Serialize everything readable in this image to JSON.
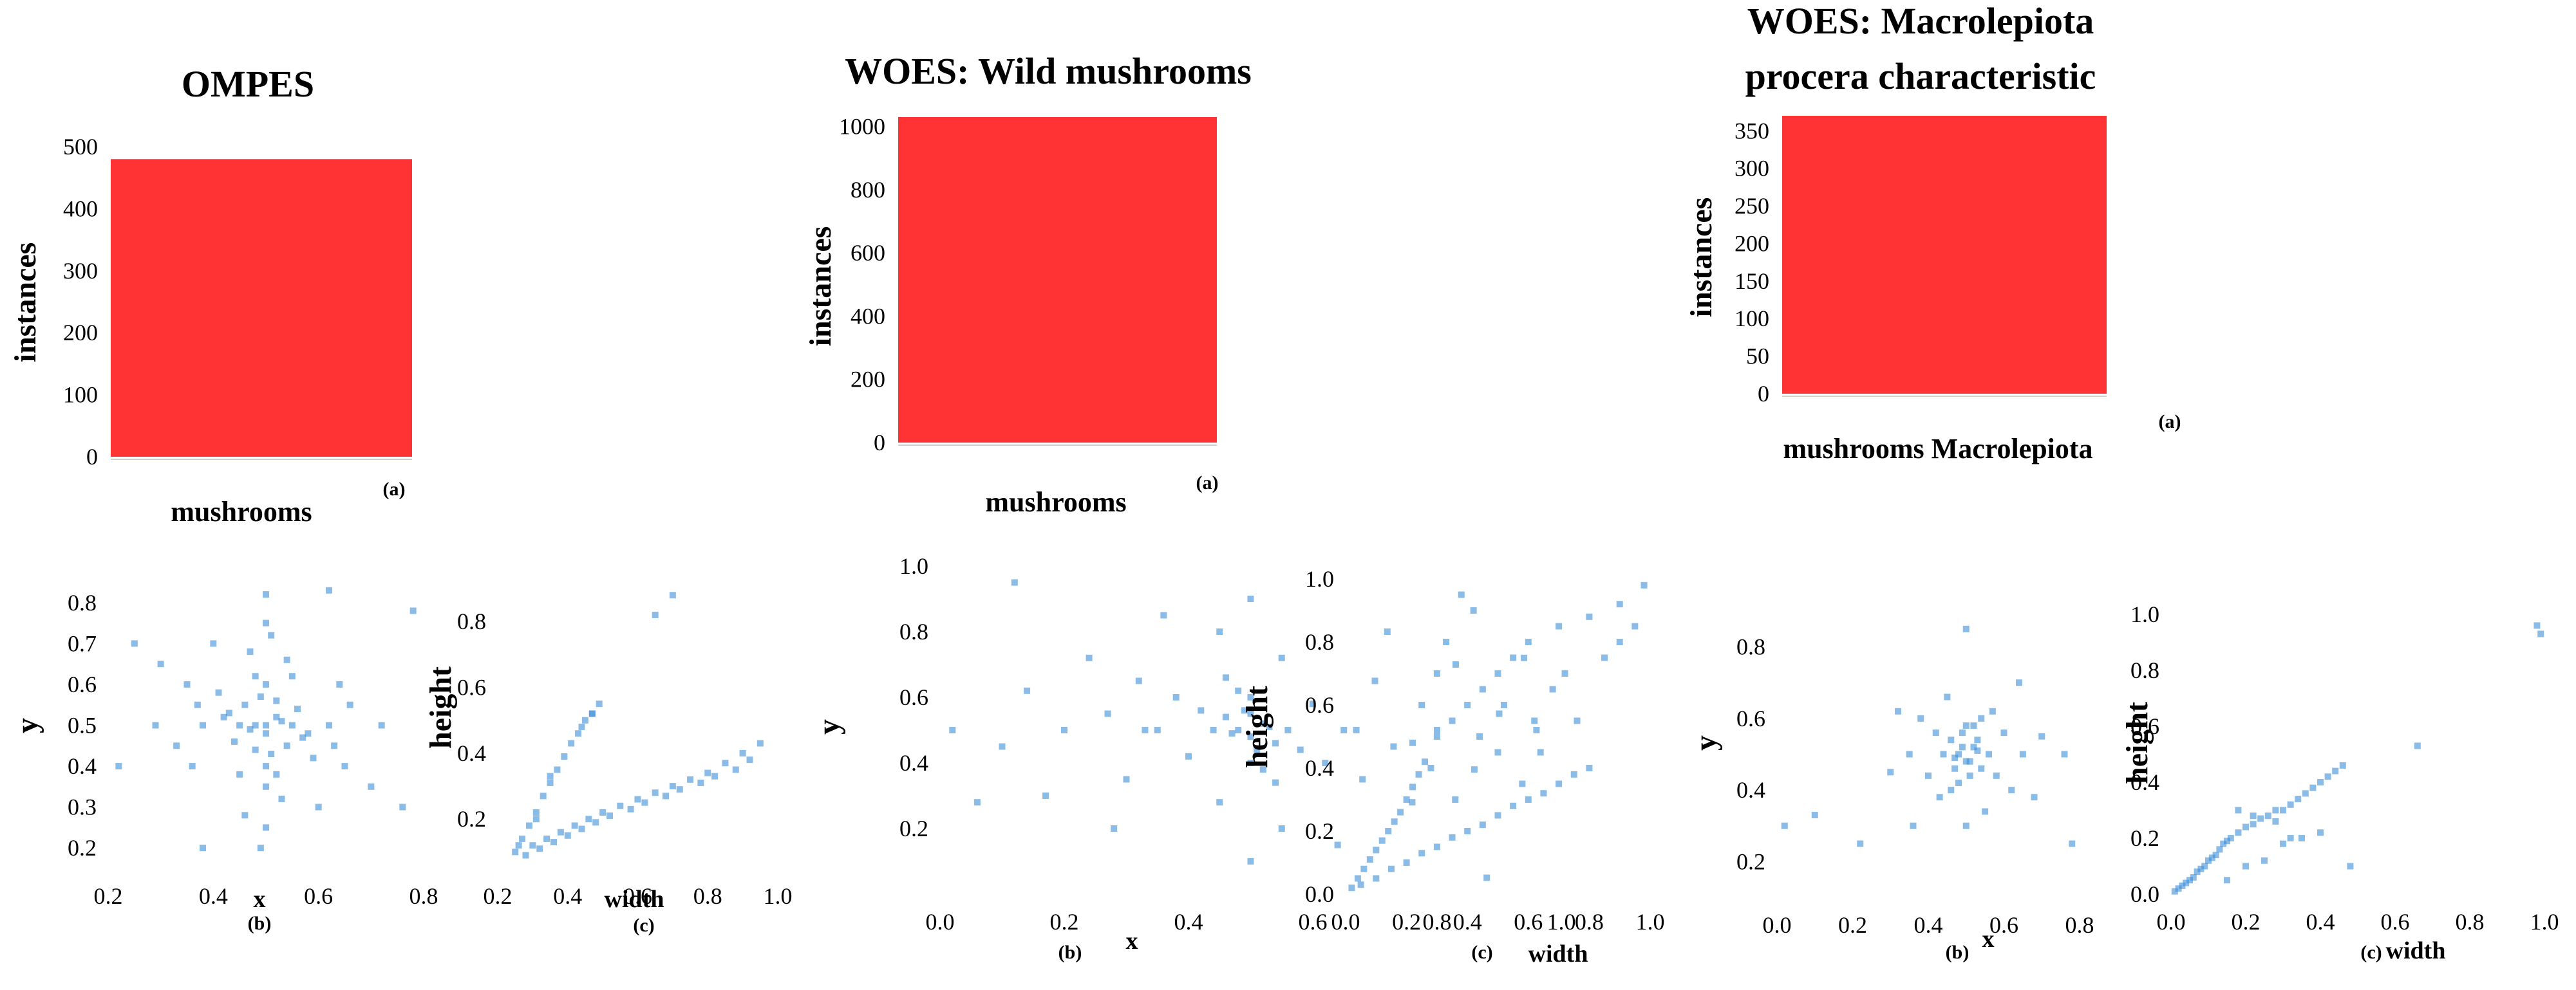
{
  "chart_data": [
    {
      "type": "bar",
      "title": "OMPES",
      "categories": [
        "mushrooms"
      ],
      "values": [
        480
      ],
      "ylabel": "instances",
      "xlabel": "",
      "ylim": [
        0,
        500
      ],
      "yticks": [
        "0",
        "100",
        "200",
        "300",
        "400",
        "500"
      ],
      "bar_color": "#ff3333",
      "panel_label": "(a)"
    },
    {
      "type": "scatter",
      "panel_label": "(b)",
      "xlabel": "x",
      "ylabel": "y",
      "xlim": [
        0.2,
        0.8
      ],
      "ylim": [
        0.15,
        0.85
      ],
      "xticks": [
        "0.2",
        "0.4",
        "0.6",
        "0.8"
      ],
      "yticks": [
        "0.2",
        "0.3",
        "0.4",
        "0.5",
        "0.6",
        "0.7",
        "0.8"
      ],
      "point_color": "#3d8fd9",
      "x": [
        0.48,
        0.5,
        0.52,
        0.46,
        0.54,
        0.49,
        0.51,
        0.47,
        0.53,
        0.5,
        0.45,
        0.55,
        0.43,
        0.57,
        0.5,
        0.48,
        0.52,
        0.44,
        0.56,
        0.5,
        0.41,
        0.59,
        0.38,
        0.62,
        0.35,
        0.65,
        0.3,
        0.7,
        0.25,
        0.76,
        0.33,
        0.66,
        0.4,
        0.6,
        0.37,
        0.63,
        0.5,
        0.5,
        0.47,
        0.53,
        0.29,
        0.72,
        0.22,
        0.78,
        0.62,
        0.38,
        0.55,
        0.45,
        0.58,
        0.42,
        0.5,
        0.49,
        0.51,
        0.46,
        0.54,
        0.36,
        0.64,
        0.48,
        0.52,
        0.5
      ],
      "y": [
        0.5,
        0.48,
        0.52,
        0.55,
        0.45,
        0.57,
        0.43,
        0.49,
        0.51,
        0.6,
        0.5,
        0.5,
        0.53,
        0.47,
        0.4,
        0.62,
        0.38,
        0.46,
        0.54,
        0.35,
        0.58,
        0.42,
        0.5,
        0.5,
        0.6,
        0.4,
        0.65,
        0.35,
        0.7,
        0.3,
        0.45,
        0.55,
        0.7,
        0.3,
        0.55,
        0.45,
        0.25,
        0.75,
        0.68,
        0.32,
        0.5,
        0.5,
        0.4,
        0.78,
        0.83,
        0.2,
        0.62,
        0.38,
        0.48,
        0.52,
        0.82,
        0.2,
        0.72,
        0.28,
        0.66,
        0.4,
        0.6,
        0.44,
        0.56,
        0.5
      ]
    },
    {
      "type": "scatter",
      "panel_label": "(c)",
      "xlabel": "width",
      "ylabel": "height",
      "xlim": [
        0.2,
        1.0
      ],
      "ylim": [
        0.05,
        0.9
      ],
      "xticks": [
        "0.2",
        "0.4",
        "0.6",
        "0.8",
        "1.0"
      ],
      "yticks": [
        "0.2",
        "0.4",
        "0.6",
        "0.8"
      ],
      "point_color": "#3d8fd9",
      "x": [
        0.25,
        0.27,
        0.29,
        0.31,
        0.33,
        0.35,
        0.37,
        0.39,
        0.41,
        0.43,
        0.45,
        0.47,
        0.49,
        0.3,
        0.34,
        0.38,
        0.42,
        0.46,
        0.5,
        0.55,
        0.6,
        0.65,
        0.7,
        0.75,
        0.8,
        0.85,
        0.9,
        0.95,
        0.28,
        0.32,
        0.36,
        0.4,
        0.44,
        0.48,
        0.52,
        0.58,
        0.62,
        0.68,
        0.72,
        0.78,
        0.82,
        0.88,
        0.92,
        0.65,
        0.7,
        0.26,
        0.31,
        0.35,
        0.44,
        0.47
      ],
      "y": [
        0.1,
        0.14,
        0.18,
        0.22,
        0.27,
        0.31,
        0.35,
        0.39,
        0.43,
        0.46,
        0.5,
        0.52,
        0.55,
        0.12,
        0.14,
        0.16,
        0.18,
        0.2,
        0.22,
        0.24,
        0.26,
        0.28,
        0.3,
        0.32,
        0.34,
        0.37,
        0.4,
        0.43,
        0.09,
        0.11,
        0.13,
        0.15,
        0.17,
        0.19,
        0.21,
        0.23,
        0.25,
        0.27,
        0.29,
        0.31,
        0.33,
        0.35,
        0.38,
        0.82,
        0.88,
        0.12,
        0.2,
        0.33,
        0.48,
        0.52
      ]
    },
    {
      "type": "bar",
      "title": "WOES: Wild mushrooms",
      "categories": [
        "mushrooms"
      ],
      "values": [
        1030
      ],
      "ylabel": "instances",
      "xlabel": "",
      "ylim": [
        0,
        1030
      ],
      "yticks": [
        "0",
        "200",
        "400",
        "600",
        "800",
        "1000"
      ],
      "bar_color": "#ff3333",
      "panel_label": "(a)"
    },
    {
      "type": "scatter",
      "panel_label": "(b)",
      "xlabel": "x",
      "ylabel": "y",
      "xlim": [
        0.0,
        1.0
      ],
      "ylim": [
        0.0,
        1.0
      ],
      "xticks": [
        "0.0",
        "0.2",
        "0.4",
        "0.6",
        "0.8",
        "1.0"
      ],
      "yticks": [
        "0.2",
        "0.4",
        "0.6",
        "0.8",
        "1.0"
      ],
      "point_color": "#3d8fd9",
      "x": [
        0.48,
        0.5,
        0.52,
        0.46,
        0.54,
        0.49,
        0.51,
        0.47,
        0.53,
        0.5,
        0.44,
        0.56,
        0.42,
        0.58,
        0.4,
        0.6,
        0.38,
        0.62,
        0.35,
        0.65,
        0.32,
        0.68,
        0.3,
        0.7,
        0.27,
        0.73,
        0.24,
        0.76,
        0.2,
        0.8,
        0.17,
        0.83,
        0.14,
        0.86,
        0.1,
        0.9,
        0.06,
        0.94,
        0.5,
        0.5,
        0.45,
        0.55,
        0.36,
        0.64,
        0.28,
        0.72,
        0.5,
        0.48,
        0.52,
        0.46,
        0.54,
        0.02,
        0.96,
        0.12,
        0.88,
        0.55,
        0.45,
        0.33,
        0.67,
        0.5
      ],
      "y": [
        0.5,
        0.48,
        0.52,
        0.54,
        0.46,
        0.56,
        0.44,
        0.49,
        0.51,
        0.6,
        0.5,
        0.5,
        0.56,
        0.44,
        0.42,
        0.58,
        0.6,
        0.4,
        0.5,
        0.5,
        0.65,
        0.35,
        0.35,
        0.65,
        0.55,
        0.45,
        0.72,
        0.28,
        0.5,
        0.5,
        0.3,
        0.7,
        0.62,
        0.38,
        0.45,
        0.55,
        0.28,
        0.72,
        0.9,
        0.1,
        0.8,
        0.2,
        0.85,
        0.15,
        0.2,
        0.8,
        0.4,
        0.62,
        0.38,
        0.66,
        0.34,
        0.5,
        0.5,
        0.95,
        0.05,
        0.72,
        0.28,
        0.5,
        0.5,
        0.55
      ]
    },
    {
      "type": "scatter",
      "panel_label": "(c)",
      "xlabel": "width",
      "ylabel": "height",
      "xlim": [
        0.0,
        1.0
      ],
      "ylim": [
        0.0,
        1.0
      ],
      "xticks": [
        "0.0",
        "0.2",
        "0.4",
        "0.6",
        "0.8",
        "1.0"
      ],
      "yticks": [
        "0.0",
        "0.2",
        "0.4",
        "0.6",
        "0.8",
        "1.0"
      ],
      "point_color": "#3d8fd9",
      "x": [
        0.02,
        0.04,
        0.06,
        0.08,
        0.1,
        0.12,
        0.14,
        0.16,
        0.18,
        0.2,
        0.22,
        0.24,
        0.26,
        0.05,
        0.1,
        0.15,
        0.2,
        0.25,
        0.3,
        0.35,
        0.4,
        0.45,
        0.5,
        0.55,
        0.6,
        0.65,
        0.7,
        0.75,
        0.8,
        0.3,
        0.35,
        0.4,
        0.45,
        0.5,
        0.55,
        0.6,
        0.7,
        0.8,
        0.9,
        0.98,
        0.25,
        0.3,
        0.33,
        0.38,
        0.42,
        0.5,
        0.62,
        0.68,
        0.72,
        0.85,
        0.9,
        0.95,
        0.22,
        0.28,
        0.36,
        0.44,
        0.52,
        0.58,
        0.64,
        0.76
      ],
      "y": [
        0.02,
        0.05,
        0.08,
        0.11,
        0.14,
        0.17,
        0.2,
        0.23,
        0.26,
        0.3,
        0.34,
        0.38,
        0.42,
        0.03,
        0.05,
        0.08,
        0.1,
        0.13,
        0.15,
        0.18,
        0.2,
        0.22,
        0.25,
        0.28,
        0.3,
        0.32,
        0.35,
        0.38,
        0.4,
        0.5,
        0.55,
        0.6,
        0.65,
        0.7,
        0.75,
        0.8,
        0.85,
        0.88,
        0.92,
        0.98,
        0.6,
        0.7,
        0.8,
        0.95,
        0.9,
        0.45,
        0.55,
        0.65,
        0.7,
        0.75,
        0.8,
        0.85,
        0.48,
        0.4,
        0.3,
        0.5,
        0.6,
        0.35,
        0.45,
        0.55
      ]
    },
    {
      "type": "bar",
      "title": "WOES: Macrolepiota procera characteristic",
      "title_lines": [
        "WOES: Macrolepiota",
        "procera characteristic"
      ],
      "categories": [
        "mushrooms Macrolepiota"
      ],
      "values": [
        370
      ],
      "ylabel": "instances",
      "xlabel": "",
      "ylim": [
        0,
        370
      ],
      "yticks": [
        "0",
        "50",
        "100",
        "150",
        "200",
        "250",
        "300",
        "350"
      ],
      "bar_color": "#ff3333",
      "panel_label": "(a)"
    },
    {
      "type": "scatter",
      "panel_label": "(b)",
      "xlabel": "x",
      "ylabel": "y",
      "xlim": [
        0.0,
        0.8
      ],
      "ylim": [
        0.1,
        0.9
      ],
      "xticks": [
        "0.0",
        "0.2",
        "0.4",
        "0.6",
        "0.8"
      ],
      "yticks": [
        "0.2",
        "0.4",
        "0.6",
        "0.8"
      ],
      "point_color": "#3d8fd9",
      "x": [
        0.48,
        0.5,
        0.52,
        0.46,
        0.54,
        0.49,
        0.51,
        0.47,
        0.53,
        0.5,
        0.44,
        0.56,
        0.42,
        0.58,
        0.4,
        0.6,
        0.38,
        0.62,
        0.35,
        0.65,
        0.32,
        0.68,
        0.3,
        0.7,
        0.45,
        0.55,
        0.48,
        0.52,
        0.36,
        0.64,
        0.5,
        0.5,
        0.43,
        0.57,
        0.02,
        0.1,
        0.22,
        0.76,
        0.78,
        0.47,
        0.53,
        0.46,
        0.54,
        0.49,
        0.51
      ],
      "y": [
        0.5,
        0.48,
        0.52,
        0.54,
        0.46,
        0.56,
        0.44,
        0.49,
        0.51,
        0.58,
        0.5,
        0.5,
        0.56,
        0.44,
        0.44,
        0.56,
        0.6,
        0.4,
        0.5,
        0.5,
        0.62,
        0.38,
        0.45,
        0.55,
        0.66,
        0.34,
        0.42,
        0.58,
        0.3,
        0.7,
        0.85,
        0.3,
        0.38,
        0.62,
        0.3,
        0.33,
        0.25,
        0.5,
        0.25,
        0.46,
        0.54,
        0.4,
        0.6,
        0.52,
        0.48
      ]
    },
    {
      "type": "scatter",
      "panel_label": "(c)",
      "xlabel": "width",
      "ylabel": "height",
      "xlim": [
        0.0,
        1.0
      ],
      "ylim": [
        0.0,
        1.0
      ],
      "xticks": [
        "0.0",
        "0.2",
        "0.4",
        "0.6",
        "0.8",
        "1.0"
      ],
      "yticks": [
        "0.0",
        "0.2",
        "0.4",
        "0.6",
        "0.8",
        "1.0"
      ],
      "point_color": "#3d8fd9",
      "x": [
        0.01,
        0.02,
        0.03,
        0.04,
        0.05,
        0.06,
        0.07,
        0.08,
        0.09,
        0.1,
        0.11,
        0.12,
        0.13,
        0.14,
        0.15,
        0.16,
        0.18,
        0.2,
        0.22,
        0.24,
        0.26,
        0.28,
        0.3,
        0.32,
        0.34,
        0.36,
        0.38,
        0.4,
        0.42,
        0.44,
        0.46,
        0.48,
        0.15,
        0.2,
        0.25,
        0.3,
        0.35,
        0.4,
        0.18,
        0.22,
        0.28,
        0.32,
        0.66,
        0.98,
        0.99
      ],
      "y": [
        0.01,
        0.02,
        0.03,
        0.04,
        0.05,
        0.06,
        0.08,
        0.09,
        0.1,
        0.12,
        0.13,
        0.14,
        0.16,
        0.18,
        0.19,
        0.2,
        0.22,
        0.24,
        0.25,
        0.27,
        0.28,
        0.3,
        0.3,
        0.32,
        0.34,
        0.36,
        0.38,
        0.4,
        0.42,
        0.44,
        0.46,
        0.1,
        0.05,
        0.1,
        0.12,
        0.18,
        0.2,
        0.22,
        0.3,
        0.28,
        0.26,
        0.2,
        0.53,
        0.96,
        0.93
      ]
    }
  ]
}
